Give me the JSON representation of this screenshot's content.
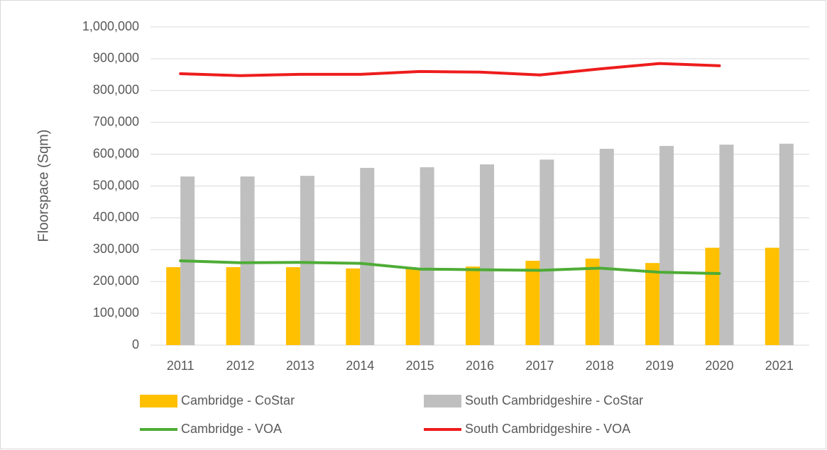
{
  "chart_data": {
    "type": "bar",
    "y_label": "Floorspace (Sqm)",
    "categories": [
      "2011",
      "2012",
      "2013",
      "2014",
      "2015",
      "2016",
      "2017",
      "2018",
      "2019",
      "2020",
      "2021"
    ],
    "series": [
      {
        "name": "Cambridge - CoStar",
        "type": "bar",
        "color": "#ffc000",
        "values": [
          245000,
          245000,
          245000,
          241000,
          240000,
          247000,
          265000,
          272000,
          258000,
          306000,
          306000
        ]
      },
      {
        "name": "South Cambridgeshire - CoStar",
        "type": "bar",
        "color": "#bfbfbf",
        "values": [
          530000,
          530000,
          532000,
          557000,
          559000,
          568000,
          583000,
          617000,
          626000,
          630000,
          633000
        ]
      },
      {
        "name": "Cambridge - VOA",
        "type": "line",
        "color": "#4eac36",
        "values": [
          265000,
          259000,
          260000,
          257000,
          239000,
          237000,
          235000,
          242000,
          229000,
          225000,
          null
        ]
      },
      {
        "name": "South Cambridgeshire - VOA",
        "type": "line",
        "color": "#ee1c1c",
        "values": [
          853000,
          847000,
          851000,
          851000,
          860000,
          858000,
          849000,
          868000,
          885000,
          878000,
          null
        ]
      }
    ],
    "ylim": [
      0,
      1000000
    ],
    "yticks": [
      0,
      {
        "value": 100000,
        "label": "100,000"
      },
      {
        "value": 200000,
        "label": "200,000"
      },
      {
        "value": 300000,
        "label": "300,000"
      },
      {
        "value": 400000,
        "label": "400,000"
      },
      {
        "value": 500000,
        "label": "500,000"
      },
      {
        "value": 600000,
        "label": "600,000"
      },
      {
        "value": 700000,
        "label": "700,000"
      },
      {
        "value": 800000,
        "label": "800,000"
      },
      {
        "value": 900000,
        "label": "900,000"
      },
      {
        "value": 1000000,
        "label": "1,000,000"
      }
    ],
    "grid": true,
    "legend": "bottom"
  }
}
